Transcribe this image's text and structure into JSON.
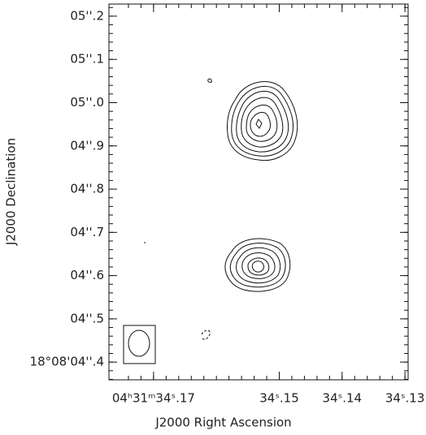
{
  "chart_data": {
    "type": "contour",
    "xlabel": "J2000 Right Ascension",
    "ylabel": "J2000 Declination",
    "xlim": [
      34.1771,
      34.1295
    ],
    "ylim": [
      4.359,
      5.228
    ],
    "xticks": [
      {
        "value": 34.17,
        "label": "04ʰ31ᵐ34ˢ.17"
      },
      {
        "value": 34.15,
        "label": "34ˢ.15"
      },
      {
        "value": 34.14,
        "label": "34ˢ.14"
      },
      {
        "value": 34.13,
        "label": "34ˢ.13"
      }
    ],
    "yticks": [
      {
        "value": 4.4,
        "label": "18°08'04''.4"
      },
      {
        "value": 4.5,
        "label": "04''.5"
      },
      {
        "value": 4.6,
        "label": "04''.6"
      },
      {
        "value": 4.7,
        "label": "04''.7"
      },
      {
        "value": 4.8,
        "label": "04''.8"
      },
      {
        "value": 4.9,
        "label": "04''.9"
      },
      {
        "value": 5.0,
        "label": "05''.0"
      },
      {
        "value": 5.1,
        "label": "05''.1"
      },
      {
        "value": 5.2,
        "label": "05''.2"
      }
    ]
  }
}
